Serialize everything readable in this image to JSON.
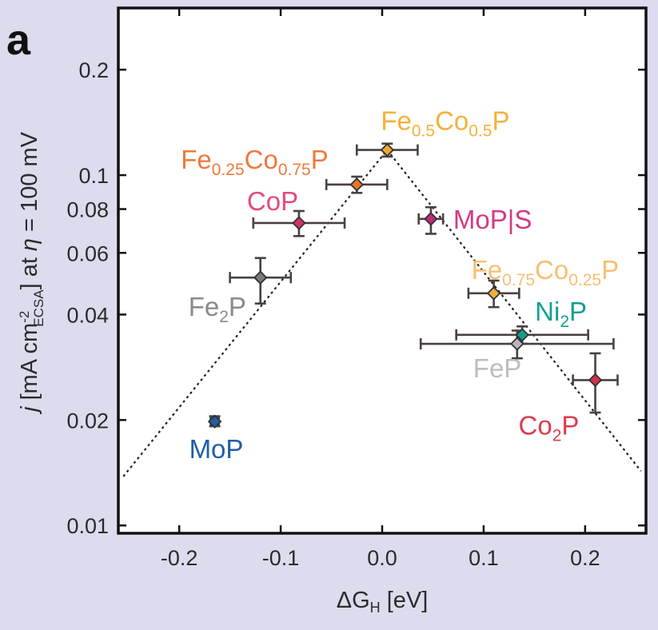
{
  "panel_label": "a",
  "chart_data": {
    "type": "scatter",
    "xlabel_symbol": "ΔG",
    "xlabel_subscript": "H",
    "xlabel_unit": " [eV]",
    "ylabel_parts": {
      "j": "j",
      "pre": " [mA cm",
      "sup": "-2",
      "sub": "ECSA",
      "mid": "] at ",
      "eta": "η",
      "post": " = 100 mV"
    },
    "xlim": [
      -0.26,
      0.26
    ],
    "ylim": [
      0.0095,
      0.3
    ],
    "yscale": "log",
    "xticks": [
      -0.2,
      -0.1,
      0.0,
      0.1,
      0.2
    ],
    "xtick_labels": [
      "-0.2",
      "-0.1",
      "0.0",
      "0.1",
      "0.2"
    ],
    "yticks": [
      0.01,
      0.02,
      0.04,
      0.06,
      0.08,
      0.1,
      0.2
    ],
    "ytick_labels": [
      "0.01",
      "0.02",
      "0.04",
      "0.06",
      "0.08",
      "0.1",
      "0.2"
    ],
    "trend_line": {
      "style": "dotted",
      "points": [
        [
          -0.255,
          0.0138
        ],
        [
          0.005,
          0.118
        ],
        [
          0.255,
          0.0143
        ]
      ]
    },
    "points": [
      {
        "label": "MoP",
        "sub": [],
        "x": -0.165,
        "y": 0.0198,
        "xerr": 0.004,
        "yerr": [
          0.0192,
          0.0205
        ],
        "color": "#1f5fa8",
        "label_color": "#1f5fa8"
      },
      {
        "label": "Fe2P",
        "sub": [
          "",
          "2",
          "P"
        ],
        "x": -0.12,
        "y": 0.051,
        "xerr": 0.03,
        "yerr": [
          0.043,
          0.058
        ],
        "color": "#7a7a7a",
        "label_color": "#8a8a8a"
      },
      {
        "label": "CoP",
        "sub": [],
        "x": -0.082,
        "y": 0.073,
        "xerr": 0.045,
        "yerr": [
          0.067,
          0.079
        ],
        "color": "#d6306a",
        "label_color": "#e44a7e"
      },
      {
        "label": "Fe0.25Co0.75P",
        "sub": [
          "Fe",
          "0.25",
          "Co",
          "0.75",
          "P"
        ],
        "x": -0.025,
        "y": 0.094,
        "xerr": 0.03,
        "yerr": [
          0.089,
          0.099
        ],
        "color": "#e8742a",
        "label_color": "#f07a3c"
      },
      {
        "label": "Fe0.5Co0.5P",
        "sub": [
          "Fe",
          "0.5",
          "Co",
          "0.5",
          "P"
        ],
        "x": 0.005,
        "y": 0.118,
        "xerr": 0.03,
        "yerr": [
          0.113,
          0.123
        ],
        "color": "#f0a830",
        "label_color": "#f4b23a"
      },
      {
        "label": "MoP|S",
        "sub": [],
        "x": 0.048,
        "y": 0.075,
        "xerr": 0.012,
        "yerr": [
          0.068,
          0.081
        ],
        "color": "#c02a7a",
        "label_color": "#d33a86"
      },
      {
        "label": "Fe0.75Co0.25P",
        "sub": [
          "Fe",
          "0.75",
          "Co",
          "0.25",
          "P"
        ],
        "x": 0.11,
        "y": 0.046,
        "xerr": 0.025,
        "yerr": [
          0.042,
          0.05
        ],
        "color": "#f0b040",
        "label_color": "#f6c070"
      },
      {
        "label": "FeP",
        "sub": [],
        "x": 0.133,
        "y": 0.033,
        "xerr": 0.095,
        "yerr": [
          0.03,
          0.036
        ],
        "color": "#b8b8b8",
        "label_color": "#bdbdbd"
      },
      {
        "label": "Ni2P",
        "sub": [
          "Ni",
          "2",
          "P"
        ],
        "x": 0.138,
        "y": 0.035,
        "xerr": 0.065,
        "yerr": [
          0.033,
          0.037
        ],
        "color": "#1a9a8a",
        "label_color": "#14a090"
      },
      {
        "label": "Co2P",
        "sub": [
          "Co",
          "2",
          "P"
        ],
        "x": 0.21,
        "y": 0.026,
        "xerr": 0.022,
        "yerr": [
          0.021,
          0.031
        ],
        "color": "#d0304a",
        "label_color": "#dc3c50"
      }
    ]
  }
}
